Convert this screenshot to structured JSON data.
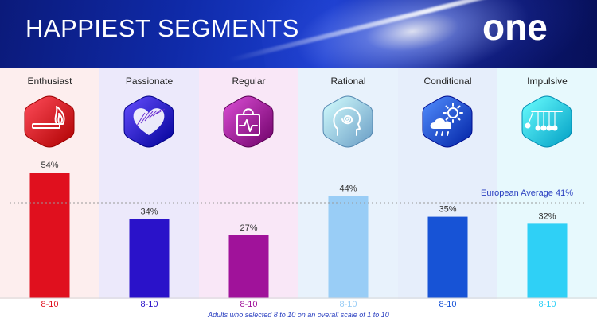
{
  "header": {
    "title": "HAPPIEST SEGMENTS",
    "logo_text": "one"
  },
  "chart_data": {
    "type": "bar",
    "categories": [
      "Enthusiast",
      "Passionate",
      "Regular",
      "Rational",
      "Conditional",
      "Impulsive"
    ],
    "values": [
      54,
      34,
      27,
      44,
      35,
      32
    ],
    "value_labels": [
      "54%",
      "34%",
      "27%",
      "44%",
      "35%",
      "32%"
    ],
    "colors": [
      "#e0101e",
      "#2a12c9",
      "#a0129a",
      "#99cdf6",
      "#1753d6",
      "#2fd0f6"
    ],
    "column_backgrounds": [
      "#fdeeee",
      "#ece9fb",
      "#f9e7f7",
      "#e8f2fc",
      "#e6eefb",
      "#e7f9fd"
    ],
    "icons": [
      "match-flame-icon",
      "heart-icon",
      "shopping-bag-pulse-icon",
      "head-spiral-icon",
      "sun-cloud-rain-icon",
      "newtons-cradle-icon"
    ],
    "reference_line": {
      "value": 41,
      "label": "European Average 41%"
    },
    "ylim": [
      0,
      60
    ]
  },
  "footer": {
    "range_labels": [
      "8-10",
      "8-10",
      "8-10",
      "8-10",
      "8-10",
      "8-10"
    ],
    "note": "Adults who selected 8 to 10 on an overall scale of 1 to 10"
  }
}
